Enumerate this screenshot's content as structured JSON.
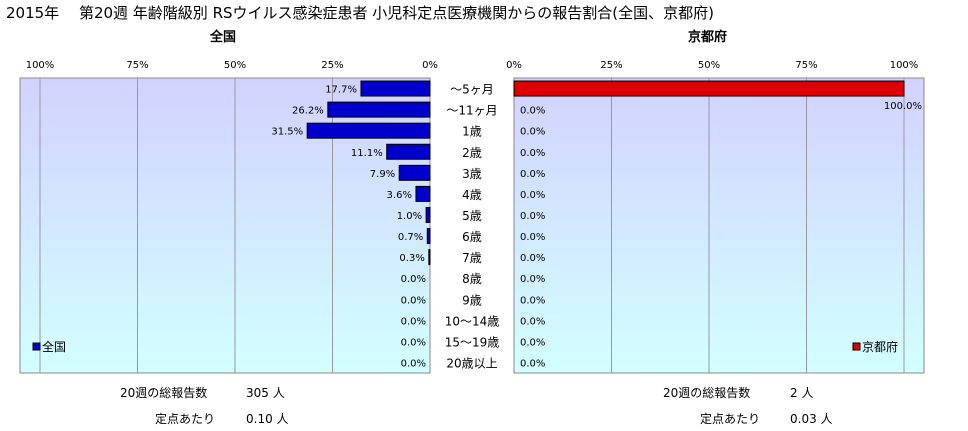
{
  "header": {
    "title": "2015年　 第20週 年齢階級別 RSウイルス感染症患者 小児科定点医療機関からの報告割合(全国、京都府)"
  },
  "panels": {
    "left_title": "全国",
    "right_title": "京都府"
  },
  "colors": {
    "national": "#0000cc",
    "kyoto": "#dd0000",
    "plot_top": "#d2d2ff",
    "plot_bottom": "#d2ffff"
  },
  "chart_data": [
    {
      "type": "bar",
      "orientation": "horizontal",
      "direction": "right-to-left",
      "categories": [
        "～5ヶ月",
        "～11ヶ月",
        "1歳",
        "2歳",
        "3歳",
        "4歳",
        "5歳",
        "6歳",
        "7歳",
        "8歳",
        "9歳",
        "10～14歳",
        "15～19歳",
        "20歳以上"
      ],
      "series": [
        {
          "name": "全国",
          "values": [
            17.7,
            26.2,
            31.5,
            11.1,
            7.9,
            3.6,
            1.0,
            0.7,
            0.3,
            0.0,
            0.0,
            0.0,
            0.0,
            0.0
          ]
        }
      ],
      "value_labels": [
        "17.7%",
        "26.2%",
        "31.5%",
        "11.1%",
        "7.9%",
        "3.6%",
        "1.0%",
        "0.7%",
        "0.3%",
        "0.0%",
        "0.0%",
        "0.0%",
        "0.0%",
        "0.0%"
      ],
      "xlim": [
        0,
        100
      ],
      "ticks": [
        "100%",
        "75%",
        "50%",
        "25%",
        "0%"
      ],
      "title": "全国",
      "legend": "bottom-left",
      "grid": true
    },
    {
      "type": "bar",
      "orientation": "horizontal",
      "direction": "left-to-right",
      "categories": [
        "～5ヶ月",
        "～11ヶ月",
        "1歳",
        "2歳",
        "3歳",
        "4歳",
        "5歳",
        "6歳",
        "7歳",
        "8歳",
        "9歳",
        "10～14歳",
        "15～19歳",
        "20歳以上"
      ],
      "series": [
        {
          "name": "京都府",
          "values": [
            100.0,
            0.0,
            0.0,
            0.0,
            0.0,
            0.0,
            0.0,
            0.0,
            0.0,
            0.0,
            0.0,
            0.0,
            0.0,
            0.0
          ]
        }
      ],
      "value_labels": [
        "100.0%",
        "0.0%",
        "0.0%",
        "0.0%",
        "0.0%",
        "0.0%",
        "0.0%",
        "0.0%",
        "0.0%",
        "0.0%",
        "0.0%",
        "0.0%",
        "0.0%",
        "0.0%"
      ],
      "xlim": [
        0,
        100
      ],
      "ticks": [
        "0%",
        "25%",
        "50%",
        "75%",
        "100%"
      ],
      "title": "京都府",
      "legend": "bottom-right",
      "grid": true
    }
  ],
  "stats": {
    "national": {
      "total_label": "20週の総報告数",
      "total_value": "305 人",
      "per_label": "定点あたり",
      "per_value": "0.10 人"
    },
    "kyoto": {
      "total_label": "20週の総報告数",
      "total_value": "2 人",
      "per_label": "定点あたり",
      "per_value": "0.03 人"
    }
  }
}
